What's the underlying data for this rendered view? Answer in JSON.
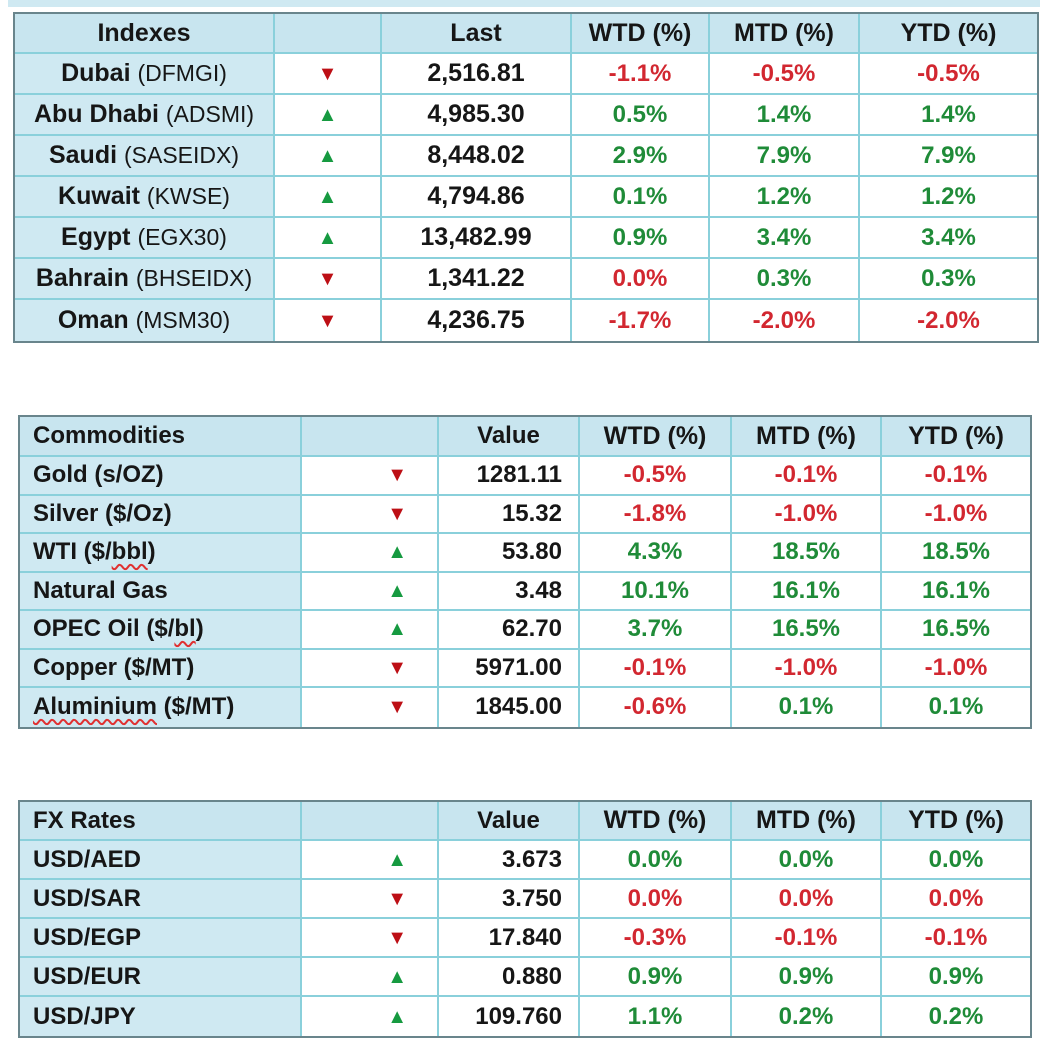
{
  "colors": {
    "header_fill": "#c8e5ef",
    "label_fill": "#cfe9f2",
    "grid": "#8ad0db",
    "outer": "#69858c",
    "text": "#161616",
    "green": "#1f8b38",
    "red": "#d22730",
    "arrow_green": "#169a40",
    "arrow_red": "#bd0f15",
    "squiggle": "#e03131",
    "strip": "#cfe9f2"
  },
  "icons": {
    "up": "▲",
    "down": "▼"
  },
  "chart_data": [
    {
      "type": "table",
      "title": "Indexes",
      "value_header": "Last",
      "pct_headers": [
        "WTD (%)",
        "MTD (%)",
        "YTD (%)"
      ],
      "rows": [
        {
          "label": [
            {
              "t": "Dubai ",
              "b": true
            },
            {
              "t": "(DFMGI)"
            }
          ],
          "dir": "down",
          "value": "2,516.81",
          "pct": [
            {
              "v": "-1.1%",
              "c": "red"
            },
            {
              "v": "-0.5%",
              "c": "red"
            },
            {
              "v": "-0.5%",
              "c": "red"
            }
          ]
        },
        {
          "label": [
            {
              "t": "Abu Dhabi ",
              "b": true
            },
            {
              "t": "(ADSMI)"
            }
          ],
          "dir": "up",
          "value": "4,985.30",
          "pct": [
            {
              "v": "0.5%",
              "c": "green"
            },
            {
              "v": "1.4%",
              "c": "green"
            },
            {
              "v": "1.4%",
              "c": "green"
            }
          ]
        },
        {
          "label": [
            {
              "t": "Saudi ",
              "b": true
            },
            {
              "t": "(SASEIDX)"
            }
          ],
          "dir": "up",
          "value": "8,448.02",
          "pct": [
            {
              "v": "2.9%",
              "c": "green"
            },
            {
              "v": "7.9%",
              "c": "green"
            },
            {
              "v": "7.9%",
              "c": "green"
            }
          ]
        },
        {
          "label": [
            {
              "t": "Kuwait ",
              "b": true
            },
            {
              "t": "(KWSE)"
            }
          ],
          "dir": "up",
          "value": "4,794.86",
          "pct": [
            {
              "v": "0.1%",
              "c": "green"
            },
            {
              "v": "1.2%",
              "c": "green"
            },
            {
              "v": "1.2%",
              "c": "green"
            }
          ]
        },
        {
          "label": [
            {
              "t": "Egypt ",
              "b": true
            },
            {
              "t": "(EGX30)"
            }
          ],
          "dir": "up",
          "value": "13,482.99",
          "pct": [
            {
              "v": "0.9%",
              "c": "green"
            },
            {
              "v": "3.4%",
              "c": "green"
            },
            {
              "v": "3.4%",
              "c": "green"
            }
          ]
        },
        {
          "label": [
            {
              "t": "Bahrain ",
              "b": true
            },
            {
              "t": "(BHSEIDX)"
            }
          ],
          "dir": "down",
          "value": "1,341.22",
          "pct": [
            {
              "v": "0.0%",
              "c": "red"
            },
            {
              "v": "0.3%",
              "c": "green"
            },
            {
              "v": "0.3%",
              "c": "green"
            }
          ]
        },
        {
          "label": [
            {
              "t": "Oman ",
              "b": true
            },
            {
              "t": "(MSM30)"
            }
          ],
          "dir": "down",
          "value": "4,236.75",
          "pct": [
            {
              "v": "-1.7%",
              "c": "red"
            },
            {
              "v": "-2.0%",
              "c": "red"
            },
            {
              "v": "-2.0%",
              "c": "red"
            }
          ]
        }
      ]
    },
    {
      "type": "table",
      "title": "Commodities",
      "value_header": "Value",
      "pct_headers": [
        "WTD (%)",
        "MTD (%)",
        "YTD (%)"
      ],
      "rows": [
        {
          "label": [
            {
              "t": "Gold (s/OZ)",
              "b": true
            }
          ],
          "dir": "down",
          "value": "1281.11",
          "pct": [
            {
              "v": "-0.5%",
              "c": "red"
            },
            {
              "v": "-0.1%",
              "c": "red"
            },
            {
              "v": "-0.1%",
              "c": "red"
            }
          ]
        },
        {
          "label": [
            {
              "t": "Silver ($/Oz)",
              "b": true
            }
          ],
          "dir": "down",
          "value": "15.32",
          "pct": [
            {
              "v": "-1.8%",
              "c": "red"
            },
            {
              "v": "-1.0%",
              "c": "red"
            },
            {
              "v": "-1.0%",
              "c": "red"
            }
          ]
        },
        {
          "label": [
            {
              "t": "WTI ($/",
              "b": true
            },
            {
              "t": "bbl",
              "b": true,
              "sq": true
            },
            {
              "t": ")",
              "b": true
            }
          ],
          "dir": "up",
          "value": "53.80",
          "pct": [
            {
              "v": "4.3%",
              "c": "green"
            },
            {
              "v": "18.5%",
              "c": "green"
            },
            {
              "v": "18.5%",
              "c": "green"
            }
          ]
        },
        {
          "label": [
            {
              "t": "Natural Gas",
              "b": true
            }
          ],
          "dir": "up",
          "value": "3.48",
          "pct": [
            {
              "v": "10.1%",
              "c": "green"
            },
            {
              "v": "16.1%",
              "c": "green"
            },
            {
              "v": "16.1%",
              "c": "green"
            }
          ]
        },
        {
          "label": [
            {
              "t": "OPEC Oil ($/",
              "b": true
            },
            {
              "t": "bl",
              "b": true,
              "sq": true
            },
            {
              "t": ")",
              "b": true
            }
          ],
          "dir": "up",
          "value": "62.70",
          "pct": [
            {
              "v": "3.7%",
              "c": "green"
            },
            {
              "v": "16.5%",
              "c": "green"
            },
            {
              "v": "16.5%",
              "c": "green"
            }
          ]
        },
        {
          "label": [
            {
              "t": "Copper ($/MT)",
              "b": true
            }
          ],
          "dir": "down",
          "value": "5971.00",
          "pct": [
            {
              "v": "-0.1%",
              "c": "red"
            },
            {
              "v": "-1.0%",
              "c": "red"
            },
            {
              "v": "-1.0%",
              "c": "red"
            }
          ]
        },
        {
          "label": [
            {
              "t": "Aluminium",
              "b": true,
              "sq": true
            },
            {
              "t": " ($/MT)",
              "b": true
            }
          ],
          "dir": "down",
          "value": "1845.00",
          "pct": [
            {
              "v": "-0.6%",
              "c": "red"
            },
            {
              "v": "0.1%",
              "c": "green"
            },
            {
              "v": "0.1%",
              "c": "green"
            }
          ]
        }
      ]
    },
    {
      "type": "table",
      "title": "FX Rates",
      "value_header": "Value",
      "pct_headers": [
        "WTD (%)",
        "MTD (%)",
        "YTD (%)"
      ],
      "rows": [
        {
          "label": [
            {
              "t": "USD/AED",
              "b": true
            }
          ],
          "dir": "up",
          "value": "3.673",
          "pct": [
            {
              "v": "0.0%",
              "c": "green"
            },
            {
              "v": "0.0%",
              "c": "green"
            },
            {
              "v": "0.0%",
              "c": "green"
            }
          ]
        },
        {
          "label": [
            {
              "t": "USD/SAR",
              "b": true
            }
          ],
          "dir": "down",
          "value": "3.750",
          "pct": [
            {
              "v": "0.0%",
              "c": "red"
            },
            {
              "v": "0.0%",
              "c": "red"
            },
            {
              "v": "0.0%",
              "c": "red"
            }
          ]
        },
        {
          "label": [
            {
              "t": "USD/EGP",
              "b": true
            }
          ],
          "dir": "down",
          "value": "17.840",
          "pct": [
            {
              "v": "-0.3%",
              "c": "red"
            },
            {
              "v": "-0.1%",
              "c": "red"
            },
            {
              "v": "-0.1%",
              "c": "red"
            }
          ]
        },
        {
          "label": [
            {
              "t": "USD/EUR",
              "b": true
            }
          ],
          "dir": "up",
          "value": "0.880",
          "pct": [
            {
              "v": "0.9%",
              "c": "green"
            },
            {
              "v": "0.9%",
              "c": "green"
            },
            {
              "v": "0.9%",
              "c": "green"
            }
          ]
        },
        {
          "label": [
            {
              "t": "USD/JPY",
              "b": true
            }
          ],
          "dir": "up",
          "value": "109.760",
          "pct": [
            {
              "v": "1.1%",
              "c": "green"
            },
            {
              "v": "0.2%",
              "c": "green"
            },
            {
              "v": "0.2%",
              "c": "green"
            }
          ]
        }
      ]
    }
  ]
}
